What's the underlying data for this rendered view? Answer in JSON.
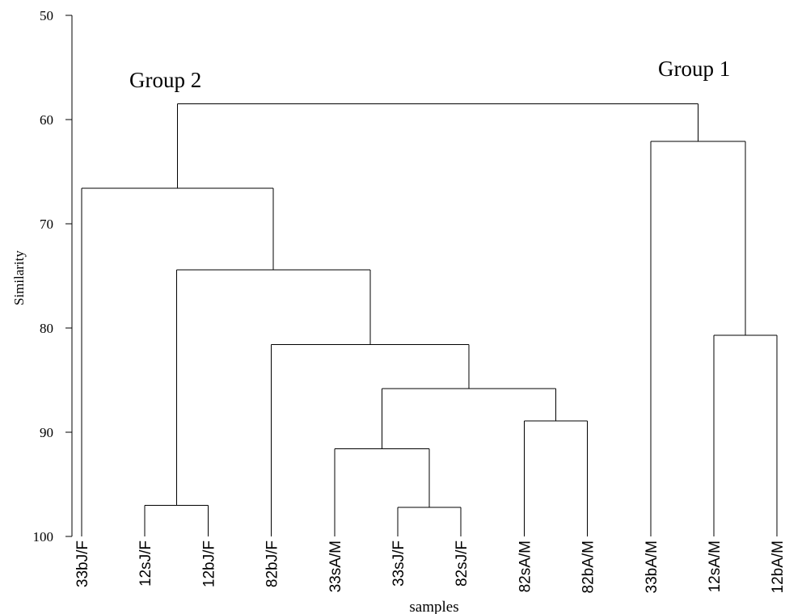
{
  "chart_data": {
    "type": "dendrogram",
    "ylabel": "Similarity",
    "xlabel": "samples",
    "ylim": [
      50,
      100
    ],
    "y_inverted": true,
    "y_ticks": [
      50,
      60,
      70,
      80,
      90,
      100
    ],
    "leaves": [
      "33bJ/F",
      "12sJ/F",
      "12bJ/F",
      "82bJ/F",
      "33sA/M",
      "33sJ/F",
      "82sJ/F",
      "82sA/M",
      "82bA/M",
      "33bA/M",
      "12sA/M",
      "12bA/M"
    ],
    "merges": [
      {
        "members": [
          "12sJ/F",
          "12bJ/F"
        ],
        "similarity": 97.0
      },
      {
        "members": [
          "33sJ/F",
          "82sJ/F"
        ],
        "similarity": 97.2
      },
      {
        "members": [
          "33sA/M",
          "33sJ/F",
          "82sJ/F"
        ],
        "similarity": 91.6
      },
      {
        "members": [
          "82sA/M",
          "82bA/M"
        ],
        "similarity": 88.9
      },
      {
        "members": [
          "33sA/M",
          "33sJ/F",
          "82sJ/F",
          "82sA/M",
          "82bA/M"
        ],
        "similarity": 85.8
      },
      {
        "members": [
          "82bJ/F",
          "33sA/M",
          "33sJ/F",
          "82sJ/F",
          "82sA/M",
          "82bA/M"
        ],
        "similarity": 81.6
      },
      {
        "members": [
          "12sJ/F",
          "12bJ/F",
          "82bJ/F",
          "33sA/M",
          "33sJ/F",
          "82sJ/F",
          "82sA/M",
          "82bA/M"
        ],
        "similarity": 74.4
      },
      {
        "members": [
          "33bJ/F",
          "12sJ/F",
          "12bJ/F",
          "82bJ/F",
          "33sA/M",
          "33sJ/F",
          "82sJ/F",
          "82sA/M",
          "82bA/M"
        ],
        "similarity": 66.6
      },
      {
        "members": [
          "12sA/M",
          "12bA/M"
        ],
        "similarity": 80.7
      },
      {
        "members": [
          "33bA/M",
          "12sA/M",
          "12bA/M"
        ],
        "similarity": 62.1
      },
      {
        "members": [
          "all"
        ],
        "similarity": 58.5
      }
    ],
    "annotations": [
      "Group 2",
      "Group 1"
    ],
    "grid": false,
    "legend": "none"
  }
}
